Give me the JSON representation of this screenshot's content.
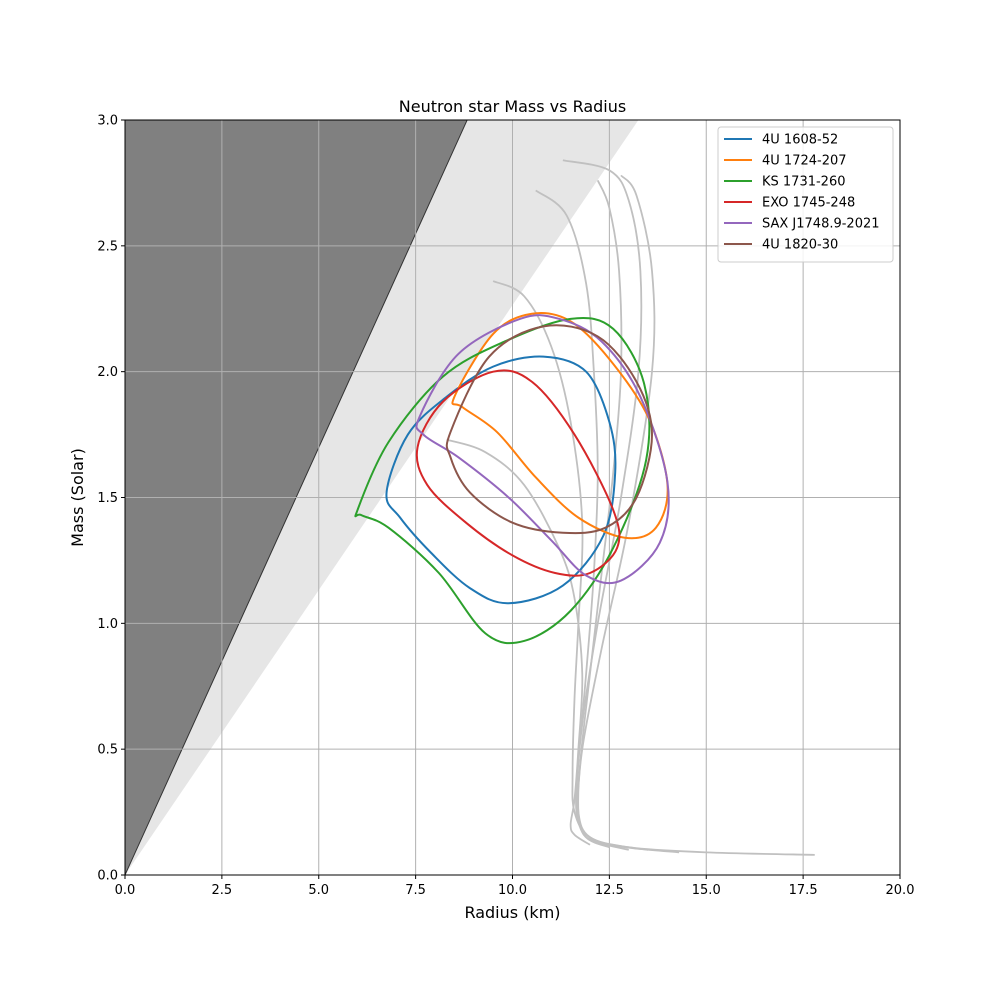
{
  "chart_data": {
    "type": "line",
    "title": "Neutron star Mass vs Radius",
    "xlabel": "Radius (km)",
    "ylabel": "Mass (Solar)",
    "xlim": [
      0,
      20
    ],
    "ylim": [
      0,
      3
    ],
    "grid": true,
    "legend_position": "top-right",
    "x_ticks": [
      "0.0",
      "2.5",
      "5.0",
      "7.5",
      "10.0",
      "12.5",
      "15.0",
      "17.5",
      "20.0"
    ],
    "y_ticks": [
      "0.0",
      "0.5",
      "1.0",
      "1.5",
      "2.0",
      "2.5",
      "3.0"
    ],
    "regions": [
      {
        "kind": "excluded-dark",
        "color": "#808080",
        "boundary": [
          [
            0,
            0
          ],
          [
            8.83,
            3.0
          ]
        ]
      },
      {
        "kind": "excluded-light",
        "color": "#e6e6e6",
        "boundary": [
          [
            0,
            0
          ],
          [
            13.25,
            3.0
          ]
        ]
      }
    ],
    "eos_curves_color": "#c0c0c0",
    "eos_curves": [
      [
        [
          17.8,
          0.08
        ],
        [
          15.0,
          0.09
        ],
        [
          13.0,
          0.11
        ],
        [
          12.0,
          0.15
        ],
        [
          11.6,
          0.25
        ],
        [
          11.55,
          0.4
        ],
        [
          11.6,
          0.7
        ],
        [
          11.7,
          1.0
        ],
        [
          11.8,
          1.4
        ],
        [
          11.5,
          1.8
        ],
        [
          11.0,
          2.1
        ],
        [
          10.3,
          2.3
        ],
        [
          9.5,
          2.36
        ]
      ],
      [
        [
          14.3,
          0.09
        ],
        [
          13.0,
          0.11
        ],
        [
          12.0,
          0.15
        ],
        [
          11.7,
          0.25
        ],
        [
          11.75,
          0.45
        ],
        [
          12.0,
          0.8
        ],
        [
          12.3,
          1.2
        ],
        [
          12.6,
          1.6
        ],
        [
          12.8,
          2.0
        ],
        [
          12.75,
          2.4
        ],
        [
          12.5,
          2.65
        ],
        [
          12.2,
          2.76
        ]
      ],
      [
        [
          13.5,
          0.1
        ],
        [
          12.5,
          0.12
        ],
        [
          11.9,
          0.16
        ],
        [
          11.65,
          0.25
        ],
        [
          11.7,
          0.45
        ],
        [
          11.9,
          0.8
        ],
        [
          12.1,
          1.2
        ],
        [
          12.2,
          1.6
        ],
        [
          12.1,
          2.0
        ],
        [
          11.9,
          2.35
        ],
        [
          11.4,
          2.62
        ],
        [
          10.6,
          2.72
        ]
      ],
      [
        [
          13.0,
          0.1
        ],
        [
          12.2,
          0.13
        ],
        [
          11.8,
          0.17
        ],
        [
          11.65,
          0.3
        ],
        [
          11.8,
          0.6
        ],
        [
          12.2,
          1.0
        ],
        [
          12.8,
          1.5
        ],
        [
          13.25,
          2.0
        ],
        [
          13.3,
          2.4
        ],
        [
          13.0,
          2.68
        ],
        [
          12.5,
          2.8
        ],
        [
          11.3,
          2.84
        ]
      ],
      [
        [
          12.5,
          0.11
        ],
        [
          11.9,
          0.15
        ],
        [
          11.7,
          0.25
        ],
        [
          11.8,
          0.5
        ],
        [
          12.3,
          0.9
        ],
        [
          13.0,
          1.4
        ],
        [
          13.6,
          2.0
        ],
        [
          13.6,
          2.4
        ],
        [
          13.2,
          2.7
        ],
        [
          12.8,
          2.78
        ]
      ],
      [
        [
          12.0,
          0.12
        ],
        [
          11.6,
          0.16
        ],
        [
          11.5,
          0.2
        ],
        [
          11.6,
          0.3
        ],
        [
          11.7,
          0.5
        ],
        [
          11.8,
          0.8
        ],
        [
          11.6,
          1.1
        ],
        [
          11.2,
          1.3
        ],
        [
          10.3,
          1.55
        ],
        [
          9.3,
          1.68
        ],
        [
          8.3,
          1.73
        ]
      ]
    ],
    "series": [
      {
        "name": "4U 1608-52",
        "color": "#1f77b4",
        "points": [
          [
            6.75,
            1.52
          ],
          [
            7.3,
            1.75
          ],
          [
            8.3,
            1.9
          ],
          [
            9.5,
            2.02
          ],
          [
            10.8,
            2.06
          ],
          [
            11.9,
            2.0
          ],
          [
            12.5,
            1.8
          ],
          [
            12.65,
            1.6
          ],
          [
            12.35,
            1.35
          ],
          [
            11.3,
            1.15
          ],
          [
            9.9,
            1.08
          ],
          [
            8.9,
            1.14
          ],
          [
            7.9,
            1.28
          ],
          [
            7.1,
            1.42
          ]
        ]
      },
      {
        "name": "4U 1724-207",
        "color": "#ff7f0e",
        "points": [
          [
            8.5,
            1.9
          ],
          [
            9.5,
            2.15
          ],
          [
            10.5,
            2.23
          ],
          [
            11.5,
            2.2
          ],
          [
            12.5,
            2.05
          ],
          [
            13.5,
            1.82
          ],
          [
            14.0,
            1.55
          ],
          [
            13.7,
            1.38
          ],
          [
            12.9,
            1.34
          ],
          [
            11.7,
            1.42
          ],
          [
            10.6,
            1.58
          ],
          [
            9.6,
            1.76
          ],
          [
            8.7,
            1.86
          ]
        ]
      },
      {
        "name": "KS 1731-260",
        "color": "#2ca02c",
        "points": [
          [
            6.0,
            1.45
          ],
          [
            6.8,
            1.72
          ],
          [
            8.2,
            1.98
          ],
          [
            9.8,
            2.12
          ],
          [
            11.5,
            2.21
          ],
          [
            12.6,
            2.17
          ],
          [
            13.4,
            1.95
          ],
          [
            13.45,
            1.65
          ],
          [
            12.6,
            1.3
          ],
          [
            11.5,
            1.05
          ],
          [
            10.3,
            0.93
          ],
          [
            9.3,
            0.96
          ],
          [
            8.1,
            1.2
          ],
          [
            6.8,
            1.38
          ],
          [
            6.1,
            1.43
          ]
        ]
      },
      {
        "name": "EXO 1745-248",
        "color": "#d62728",
        "points": [
          [
            7.55,
            1.7
          ],
          [
            8.2,
            1.88
          ],
          [
            9.5,
            2.0
          ],
          [
            10.5,
            1.96
          ],
          [
            11.6,
            1.75
          ],
          [
            12.6,
            1.45
          ],
          [
            12.7,
            1.3
          ],
          [
            12.0,
            1.2
          ],
          [
            11.1,
            1.2
          ],
          [
            10.0,
            1.27
          ],
          [
            8.8,
            1.4
          ],
          [
            7.8,
            1.55
          ]
        ]
      },
      {
        "name": "SAX J1748.9-2021",
        "color": "#9467bd",
        "points": [
          [
            7.6,
            1.82
          ],
          [
            8.6,
            2.07
          ],
          [
            10.2,
            2.21
          ],
          [
            11.2,
            2.21
          ],
          [
            12.3,
            2.12
          ],
          [
            13.3,
            1.9
          ],
          [
            14.0,
            1.56
          ],
          [
            13.8,
            1.32
          ],
          [
            12.8,
            1.17
          ],
          [
            11.9,
            1.19
          ],
          [
            11.0,
            1.33
          ],
          [
            9.9,
            1.5
          ],
          [
            8.6,
            1.66
          ],
          [
            7.7,
            1.75
          ]
        ]
      },
      {
        "name": "4U 1820-30",
        "color": "#8c564b",
        "points": [
          [
            8.4,
            1.76
          ],
          [
            9.4,
            2.06
          ],
          [
            10.8,
            2.18
          ],
          [
            12.2,
            2.14
          ],
          [
            13.2,
            1.96
          ],
          [
            13.6,
            1.75
          ],
          [
            13.2,
            1.5
          ],
          [
            12.4,
            1.38
          ],
          [
            11.3,
            1.36
          ],
          [
            10.0,
            1.4
          ],
          [
            8.9,
            1.52
          ],
          [
            8.4,
            1.66
          ]
        ]
      }
    ]
  }
}
